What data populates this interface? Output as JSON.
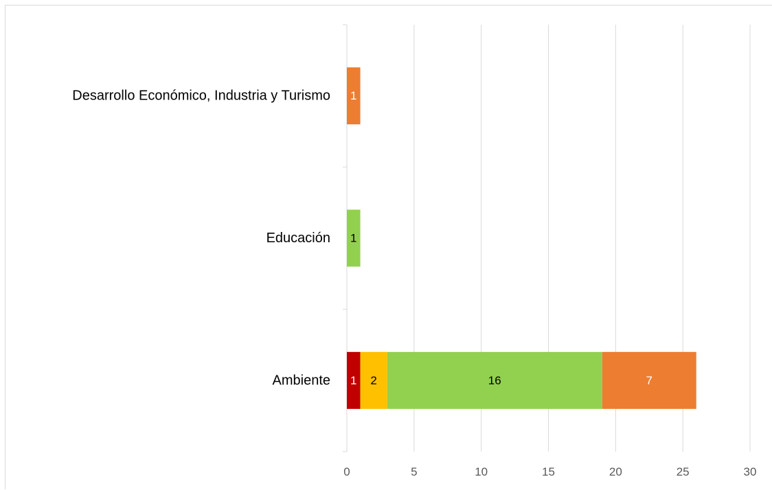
{
  "chart_data": {
    "type": "bar",
    "orientation": "horizontal",
    "stacked": true,
    "categories": [
      "Ambiente",
      "Educación",
      "Desarrollo Económico, Industria y Turismo"
    ],
    "series": [
      {
        "color": "#c00000",
        "label_color": "#ffffff",
        "values": [
          1,
          0,
          0
        ]
      },
      {
        "color": "#ffc000",
        "label_color": "#000000",
        "values": [
          2,
          0,
          0
        ]
      },
      {
        "color": "#92d050",
        "label_color": "#000000",
        "values": [
          16,
          1,
          0
        ]
      },
      {
        "color": "#ed7d31",
        "label_color": "#ffffff",
        "values": [
          7,
          0,
          1
        ]
      }
    ],
    "xlim": [
      0,
      30
    ],
    "x_ticks": [
      0,
      5,
      10,
      15,
      20,
      25,
      30
    ],
    "grid": "vertical",
    "legend": "none",
    "title": "",
    "xlabel": "",
    "ylabel": ""
  }
}
